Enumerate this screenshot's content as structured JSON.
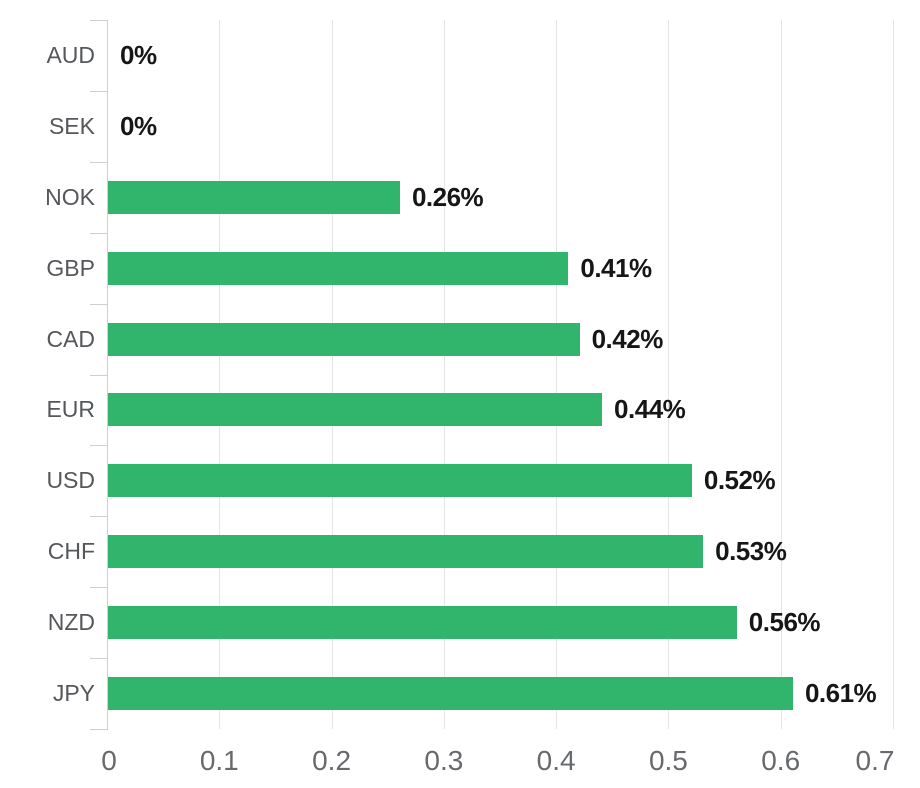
{
  "chart_data": {
    "type": "bar",
    "orientation": "horizontal",
    "title": "",
    "xlabel": "",
    "ylabel": "",
    "legend": "none",
    "grid": true,
    "categories": [
      "AUD",
      "SEK",
      "NOK",
      "GBP",
      "CAD",
      "EUR",
      "USD",
      "CHF",
      "NZD",
      "JPY"
    ],
    "values": [
      0,
      0,
      0.26,
      0.41,
      0.42,
      0.44,
      0.52,
      0.53,
      0.56,
      0.61
    ],
    "value_labels": [
      "0%",
      "0%",
      "0.26%",
      "0.41%",
      "0.42%",
      "0.44%",
      "0.52%",
      "0.53%",
      "0.56%",
      "0.61%"
    ],
    "x_tick_labels": [
      "0",
      "0.1",
      "0.2",
      "0.3",
      "0.4",
      "0.5",
      "0.6",
      "0.7"
    ],
    "x_tick_values": [
      0,
      0.1,
      0.2,
      0.3,
      0.4,
      0.5,
      0.6,
      0.7
    ],
    "xlim": [
      0,
      0.7
    ],
    "bar_color": "#31b56d"
  },
  "colors": {
    "background": "#ffffff",
    "bar": "#31b56d",
    "axis_line": "#ccd0d4",
    "gridline": "#e4e5e7",
    "category_label": "#55575b",
    "value_label": "#161616",
    "x_tick_label": "#67696c"
  }
}
